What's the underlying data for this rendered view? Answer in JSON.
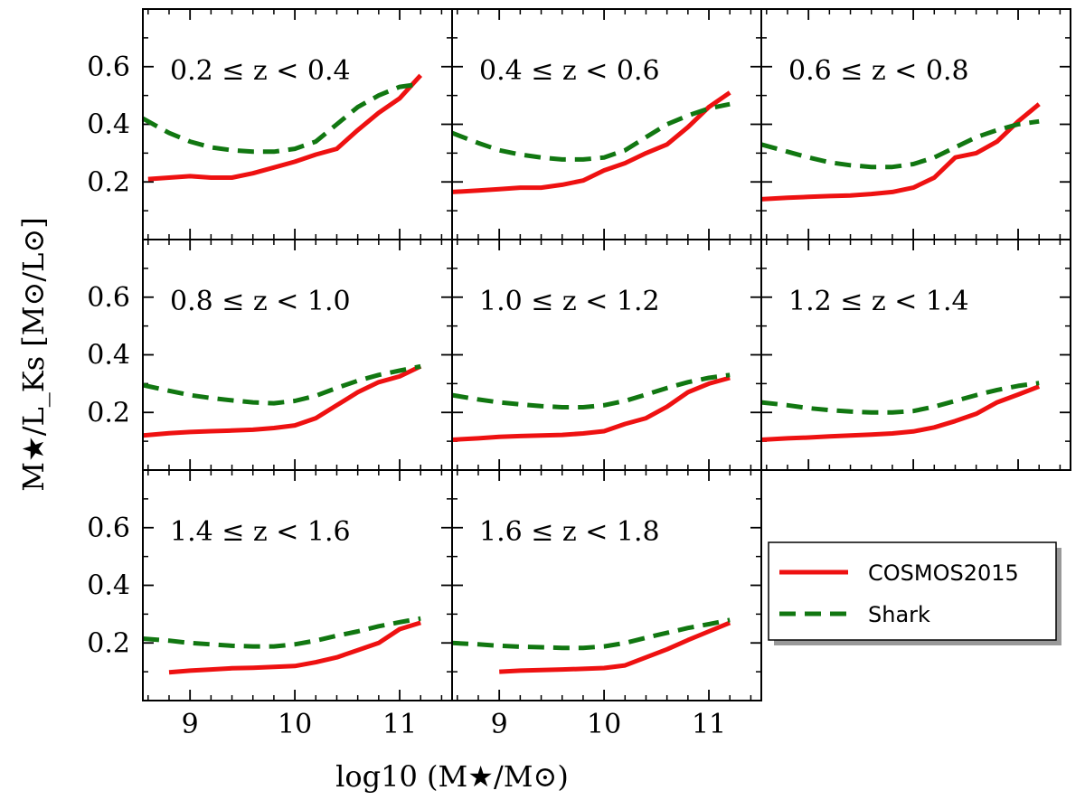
{
  "chart_data": {
    "type": "line",
    "xlabel": "log10 (M★/M⊙)",
    "ylabel": "M★/L_Ks [M⊙/L⊙]",
    "xlim": [
      8.55,
      11.5
    ],
    "ylim": [
      0.0,
      0.8
    ],
    "xticks": [
      9,
      10,
      11
    ],
    "yticks": [
      0.2,
      0.4,
      0.6
    ],
    "xtick_labels": [
      "9",
      "10",
      "11"
    ],
    "ytick_labels": [
      "0.2",
      "0.4",
      "0.6"
    ],
    "grid": false,
    "legend": {
      "placement": "lower-right-empty-panel",
      "entries": [
        {
          "label": "COSMOS2015",
          "color": "#ee1111",
          "style": "solid"
        },
        {
          "label": "Shark",
          "color": "#117711",
          "style": "dashed"
        }
      ]
    },
    "panels": [
      {
        "label": "0.2 ≤ z < 0.4",
        "series": [
          {
            "name": "COSMOS2015",
            "x": [
              8.6,
              8.8,
              9.0,
              9.2,
              9.4,
              9.6,
              9.8,
              10.0,
              10.2,
              10.4,
              10.6,
              10.8,
              11.0,
              11.2
            ],
            "y": [
              0.21,
              0.215,
              0.22,
              0.215,
              0.215,
              0.23,
              0.25,
              0.27,
              0.295,
              0.315,
              0.38,
              0.44,
              0.49,
              0.57
            ]
          },
          {
            "name": "Shark",
            "x": [
              8.55,
              8.8,
              9.0,
              9.2,
              9.4,
              9.6,
              9.8,
              10.0,
              10.2,
              10.4,
              10.6,
              10.8,
              11.0,
              11.2
            ],
            "y": [
              0.42,
              0.37,
              0.34,
              0.32,
              0.31,
              0.305,
              0.305,
              0.315,
              0.34,
              0.4,
              0.46,
              0.5,
              0.53,
              0.54
            ]
          }
        ]
      },
      {
        "label": "0.4 ≤ z < 0.6",
        "series": [
          {
            "name": "COSMOS2015",
            "x": [
              8.55,
              8.8,
              9.0,
              9.2,
              9.4,
              9.6,
              9.8,
              10.0,
              10.2,
              10.4,
              10.6,
              10.8,
              11.0,
              11.2
            ],
            "y": [
              0.165,
              0.17,
              0.175,
              0.18,
              0.18,
              0.19,
              0.205,
              0.24,
              0.265,
              0.3,
              0.33,
              0.39,
              0.46,
              0.51
            ]
          },
          {
            "name": "Shark",
            "x": [
              8.55,
              8.8,
              9.0,
              9.2,
              9.4,
              9.6,
              9.8,
              10.0,
              10.2,
              10.4,
              10.6,
              10.8,
              11.0,
              11.2
            ],
            "y": [
              0.37,
              0.335,
              0.31,
              0.295,
              0.285,
              0.278,
              0.278,
              0.285,
              0.31,
              0.355,
              0.4,
              0.43,
              0.455,
              0.47
            ]
          }
        ]
      },
      {
        "label": "0.6 ≤ z < 0.8",
        "series": [
          {
            "name": "COSMOS2015",
            "x": [
              8.55,
              8.8,
              9.0,
              9.2,
              9.4,
              9.6,
              9.8,
              10.0,
              10.2,
              10.4,
              10.6,
              10.8,
              11.0,
              11.2
            ],
            "y": [
              0.14,
              0.145,
              0.148,
              0.151,
              0.153,
              0.158,
              0.165,
              0.18,
              0.215,
              0.285,
              0.3,
              0.34,
              0.41,
              0.47
            ]
          },
          {
            "name": "Shark",
            "x": [
              8.55,
              8.8,
              9.0,
              9.2,
              9.4,
              9.6,
              9.8,
              10.0,
              10.2,
              10.4,
              10.6,
              10.8,
              11.0,
              11.2
            ],
            "y": [
              0.33,
              0.305,
              0.285,
              0.268,
              0.258,
              0.252,
              0.252,
              0.262,
              0.285,
              0.32,
              0.355,
              0.38,
              0.4,
              0.41
            ]
          }
        ]
      },
      {
        "label": "0.8 ≤ z < 1.0",
        "series": [
          {
            "name": "COSMOS2015",
            "x": [
              8.55,
              8.8,
              9.0,
              9.2,
              9.4,
              9.6,
              9.8,
              10.0,
              10.2,
              10.4,
              10.6,
              10.8,
              11.0,
              11.2
            ],
            "y": [
              0.12,
              0.128,
              0.132,
              0.135,
              0.137,
              0.14,
              0.146,
              0.155,
              0.18,
              0.225,
              0.27,
              0.305,
              0.325,
              0.36
            ]
          },
          {
            "name": "Shark",
            "x": [
              8.55,
              8.8,
              9.0,
              9.2,
              9.4,
              9.6,
              9.8,
              10.0,
              10.2,
              10.4,
              10.6,
              10.8,
              11.0,
              11.2
            ],
            "y": [
              0.295,
              0.275,
              0.26,
              0.25,
              0.242,
              0.235,
              0.232,
              0.24,
              0.258,
              0.285,
              0.31,
              0.33,
              0.345,
              0.36
            ]
          }
        ]
      },
      {
        "label": "1.0 ≤ z < 1.2",
        "series": [
          {
            "name": "COSMOS2015",
            "x": [
              8.55,
              8.8,
              9.0,
              9.2,
              9.4,
              9.6,
              9.8,
              10.0,
              10.2,
              10.4,
              10.6,
              10.8,
              11.0,
              11.2
            ],
            "y": [
              0.105,
              0.11,
              0.115,
              0.118,
              0.12,
              0.122,
              0.127,
              0.135,
              0.16,
              0.18,
              0.22,
              0.27,
              0.3,
              0.32
            ]
          },
          {
            "name": "Shark",
            "x": [
              8.55,
              8.8,
              9.0,
              9.2,
              9.4,
              9.6,
              9.8,
              10.0,
              10.2,
              10.4,
              10.6,
              10.8,
              11.0,
              11.2
            ],
            "y": [
              0.26,
              0.245,
              0.235,
              0.228,
              0.222,
              0.218,
              0.218,
              0.225,
              0.24,
              0.262,
              0.285,
              0.305,
              0.32,
              0.33
            ]
          }
        ]
      },
      {
        "label": "1.2 ≤ z < 1.4",
        "series": [
          {
            "name": "COSMOS2015",
            "x": [
              8.55,
              8.8,
              9.0,
              9.2,
              9.4,
              9.6,
              9.8,
              10.0,
              10.2,
              10.4,
              10.6,
              10.8,
              11.0,
              11.2
            ],
            "y": [
              0.105,
              0.11,
              0.113,
              0.117,
              0.12,
              0.123,
              0.127,
              0.134,
              0.148,
              0.17,
              0.195,
              0.235,
              0.262,
              0.29
            ]
          },
          {
            "name": "Shark",
            "x": [
              8.55,
              8.8,
              9.0,
              9.2,
              9.4,
              9.6,
              9.8,
              10.0,
              10.2,
              10.4,
              10.6,
              10.8,
              11.0,
              11.2
            ],
            "y": [
              0.235,
              0.225,
              0.215,
              0.208,
              0.203,
              0.2,
              0.2,
              0.205,
              0.22,
              0.24,
              0.26,
              0.278,
              0.292,
              0.302
            ]
          }
        ]
      },
      {
        "label": "1.4 ≤ z < 1.6",
        "series": [
          {
            "name": "COSMOS2015",
            "x": [
              8.8,
              9.0,
              9.2,
              9.4,
              9.6,
              9.8,
              10.0,
              10.2,
              10.4,
              10.6,
              10.8,
              11.0,
              11.2
            ],
            "y": [
              0.098,
              0.104,
              0.108,
              0.112,
              0.114,
              0.117,
              0.12,
              0.133,
              0.15,
              0.175,
              0.2,
              0.248,
              0.27
            ]
          },
          {
            "name": "Shark",
            "x": [
              8.55,
              8.8,
              9.0,
              9.2,
              9.4,
              9.6,
              9.8,
              10.0,
              10.2,
              10.4,
              10.6,
              10.8,
              11.0,
              11.2
            ],
            "y": [
              0.215,
              0.208,
              0.2,
              0.195,
              0.19,
              0.188,
              0.188,
              0.195,
              0.208,
              0.225,
              0.24,
              0.258,
              0.272,
              0.285
            ]
          }
        ]
      },
      {
        "label": "1.6 ≤ z < 1.8",
        "series": [
          {
            "name": "COSMOS2015",
            "x": [
              9.0,
              9.2,
              9.4,
              9.6,
              9.8,
              10.0,
              10.2,
              10.4,
              10.6,
              10.8,
              11.0,
              11.2
            ],
            "y": [
              0.1,
              0.104,
              0.106,
              0.108,
              0.11,
              0.113,
              0.122,
              0.15,
              0.178,
              0.21,
              0.24,
              0.27
            ]
          },
          {
            "name": "Shark",
            "x": [
              8.55,
              8.8,
              9.0,
              9.2,
              9.4,
              9.6,
              9.8,
              10.0,
              10.2,
              10.4,
              10.6,
              10.8,
              11.0,
              11.2
            ],
            "y": [
              0.2,
              0.195,
              0.19,
              0.187,
              0.185,
              0.183,
              0.183,
              0.188,
              0.2,
              0.218,
              0.235,
              0.252,
              0.265,
              0.28
            ]
          }
        ]
      }
    ]
  }
}
